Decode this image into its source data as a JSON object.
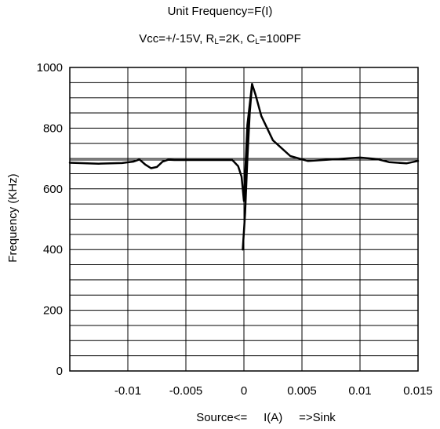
{
  "chart_data": {
    "type": "line",
    "title": "Unit Frequency=F(I)",
    "subtitle_parts": {
      "p1": "Vcc=+/-15V, R",
      "s1": "L",
      "p2": "=2K, C",
      "s2": "L",
      "p3": "=100PF"
    },
    "xlabel": "Source<=     I(A)     =>Sink",
    "ylabel": "Frequency (KHz)",
    "xlim": [
      -0.015,
      0.015
    ],
    "ylim": [
      0,
      1000
    ],
    "x_ticks": [
      -0.01,
      -0.005,
      0,
      0.005,
      0.01,
      0.015
    ],
    "x_tick_labels": [
      "-0.01",
      "-0.005",
      "0",
      "0.005",
      "0.01",
      "0.015"
    ],
    "y_ticks": [
      0,
      200,
      400,
      600,
      800,
      1000
    ],
    "y_tick_labels": [
      "0",
      "200",
      "400",
      "600",
      "800",
      "1000"
    ],
    "grid": true,
    "series": [
      {
        "x": [
          -0.015,
          -0.0125,
          -0.0105,
          -0.0095,
          -0.009,
          -0.0085,
          -0.008,
          -0.0075,
          -0.007,
          -0.0065,
          -0.006,
          -0.005,
          -0.003,
          -0.001,
          -0.0005,
          -0.0002,
          0.0,
          0.0003,
          0.0007,
          0.001,
          0.0015,
          0.0025,
          0.004,
          0.0055,
          0.008,
          0.01,
          0.0115,
          0.0125,
          0.014,
          0.015
        ],
        "y": [
          686,
          683,
          685,
          690,
          697,
          680,
          668,
          672,
          690,
          696,
          695,
          695,
          695,
          695,
          675,
          640,
          560,
          810,
          945,
          910,
          840,
          760,
          708,
          692,
          698,
          703,
          698,
          688,
          684,
          692
        ]
      },
      {
        "x": [
          -0.0001,
          0.0001,
          0.0003,
          0.0005,
          0.0007
        ],
        "y": [
          400,
          520,
          700,
          850,
          945
        ]
      }
    ],
    "reference_line": {
      "y": 695
    }
  }
}
